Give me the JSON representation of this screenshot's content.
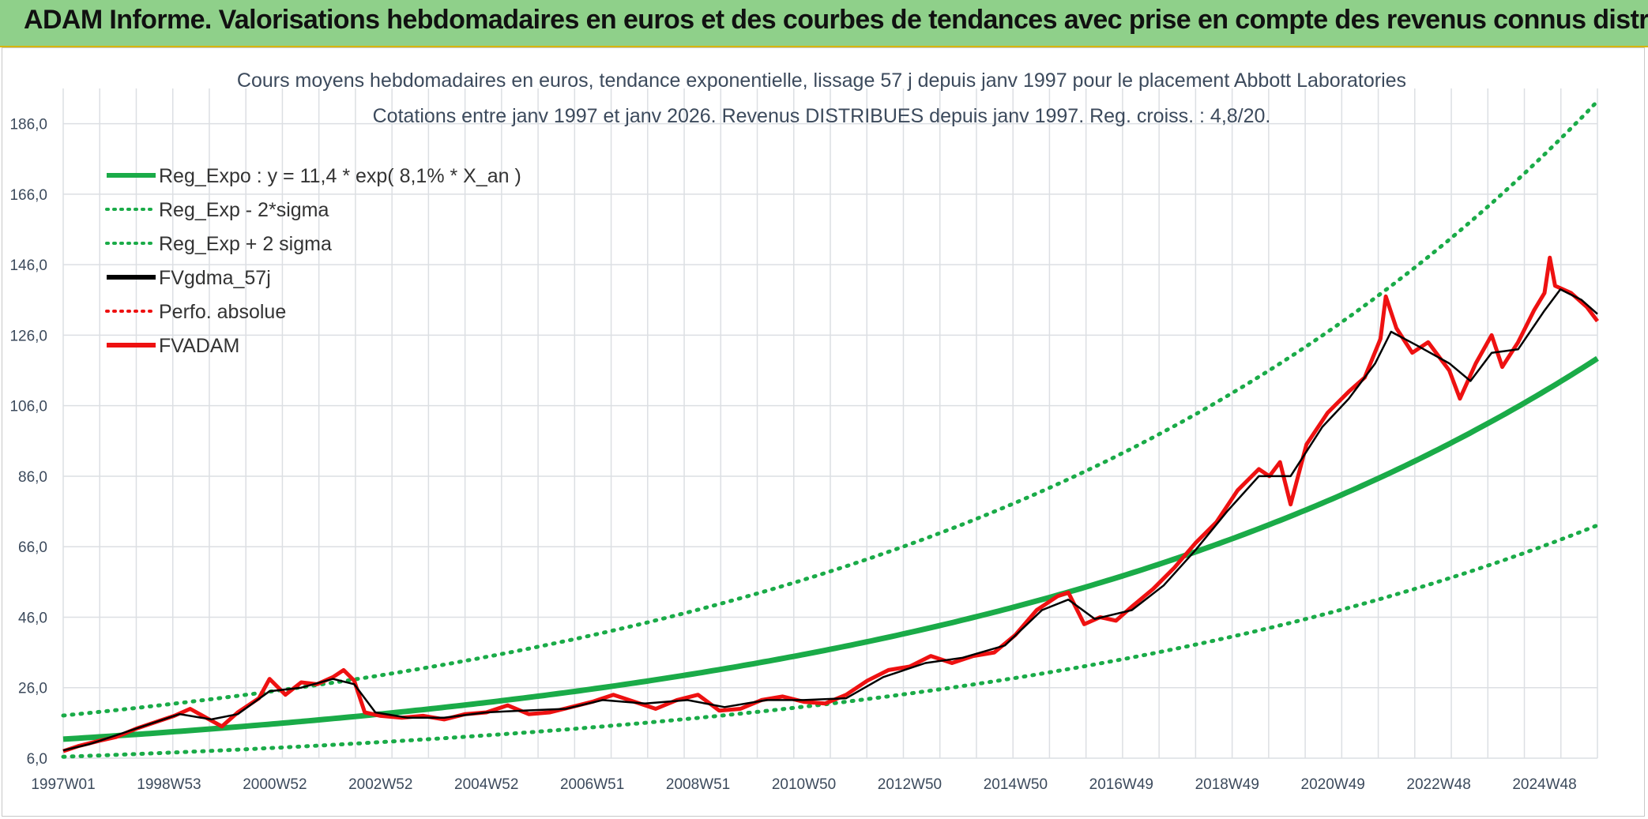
{
  "banner": {
    "title": "ADAM Informe. Valorisations hebdomadaires en euros et des courbes de tendances avec prise en compte des revenus connus distribués"
  },
  "colors": {
    "green": "#1aab48",
    "red": "#ee1111",
    "black": "#000000",
    "banner_bg": "#8fd08a",
    "grid": "#dcdfe3"
  },
  "chart_data": {
    "type": "line",
    "title": "Cours moyens hebdomadaires en euros, tendance exponentielle, lissage 57 j depuis janv 1997 pour le placement Abbott Laboratories",
    "subtitle": "Cotations entre janv 1997 et janv 2026. Revenus DISTRIBUES depuis janv 1997. Reg. croiss. : 4,8/20.",
    "xlabel": "",
    "ylabel": "",
    "x_range_years": [
      1997.0,
      2026.0
    ],
    "ylim": [
      6.0,
      196.0
    ],
    "y_ticks": [
      "186,0",
      "166,0",
      "146,0",
      "126,0",
      "106,0",
      "86,0",
      "66,0",
      "46,0",
      "26,0",
      "6,0"
    ],
    "y_tick_values": [
      186,
      166,
      146,
      126,
      106,
      86,
      66,
      46,
      26,
      6
    ],
    "x_tick_labels": [
      "1997W01",
      "1998W53",
      "2000W52",
      "2002W52",
      "2004W52",
      "2006W51",
      "2008W51",
      "2010W50",
      "2012W50",
      "2014W50",
      "2016W49",
      "2018W49",
      "2020W49",
      "2022W48",
      "2024W48"
    ],
    "legend": [
      {
        "label": "Reg_Expo : y = 11,4 * exp( 8,1% *  X_an )",
        "style": "solid",
        "color": "#1aab48"
      },
      {
        "label": "Reg_Exp - 2*sigma",
        "style": "dotted",
        "color": "#1aab48"
      },
      {
        "label": "Reg_Exp + 2 sigma",
        "style": "dotted",
        "color": "#1aab48"
      },
      {
        "label": "FVgdma_57j",
        "style": "solid",
        "color": "#000000"
      },
      {
        "label": "Perfo. absolue",
        "style": "dotted",
        "color": "#ee1111"
      },
      {
        "label": "FVADAM",
        "style": "solid",
        "color": "#ee1111"
      }
    ],
    "legend_position": "top-left",
    "grid": true,
    "series": [
      {
        "name": "Reg_Expo",
        "kind": "exp",
        "a": 11.4,
        "b": 0.081
      },
      {
        "name": "Reg_Exp - 2*sigma",
        "kind": "exp",
        "a": 6.4,
        "b": 0.0835
      },
      {
        "name": "Reg_Exp + 2 sigma",
        "kind": "exp",
        "a": 18.1,
        "b": 0.0815
      },
      {
        "name": "FVADAM",
        "points": [
          [
            1997.0,
            8.0
          ],
          [
            1997.3,
            9.5
          ],
          [
            1997.7,
            11.0
          ],
          [
            1998.0,
            12.0
          ],
          [
            1998.4,
            14.5
          ],
          [
            1998.8,
            16.5
          ],
          [
            1999.1,
            18.0
          ],
          [
            1999.4,
            20.0
          ],
          [
            1999.7,
            17.5
          ],
          [
            2000.0,
            15.0
          ],
          [
            2000.3,
            19.0
          ],
          [
            2000.7,
            23.0
          ],
          [
            2000.9,
            28.5
          ],
          [
            2001.2,
            24.0
          ],
          [
            2001.5,
            27.5
          ],
          [
            2001.8,
            27.0
          ],
          [
            2002.1,
            29.0
          ],
          [
            2002.3,
            31.0
          ],
          [
            2002.5,
            28.0
          ],
          [
            2002.7,
            19.0
          ],
          [
            2003.0,
            18.0
          ],
          [
            2003.4,
            17.5
          ],
          [
            2003.8,
            18.0
          ],
          [
            2004.2,
            17.0
          ],
          [
            2004.6,
            18.5
          ],
          [
            2005.0,
            19.0
          ],
          [
            2005.4,
            21.0
          ],
          [
            2005.8,
            18.5
          ],
          [
            2006.2,
            19.0
          ],
          [
            2006.6,
            20.5
          ],
          [
            2007.0,
            22.0
          ],
          [
            2007.4,
            24.0
          ],
          [
            2007.8,
            22.0
          ],
          [
            2008.2,
            20.0
          ],
          [
            2008.6,
            22.5
          ],
          [
            2009.0,
            24.0
          ],
          [
            2009.4,
            19.5
          ],
          [
            2009.8,
            20.0
          ],
          [
            2010.2,
            22.5
          ],
          [
            2010.6,
            23.5
          ],
          [
            2011.0,
            22.0
          ],
          [
            2011.4,
            21.5
          ],
          [
            2011.8,
            24.0
          ],
          [
            2012.2,
            28.0
          ],
          [
            2012.6,
            31.0
          ],
          [
            2013.0,
            32.0
          ],
          [
            2013.4,
            35.0
          ],
          [
            2013.8,
            33.0
          ],
          [
            2014.2,
            35.0
          ],
          [
            2014.6,
            36.0
          ],
          [
            2015.0,
            41.0
          ],
          [
            2015.4,
            48.0
          ],
          [
            2015.8,
            52.0
          ],
          [
            2016.0,
            53.0
          ],
          [
            2016.3,
            44.0
          ],
          [
            2016.6,
            46.0
          ],
          [
            2016.9,
            45.0
          ],
          [
            2017.2,
            49.0
          ],
          [
            2017.6,
            54.0
          ],
          [
            2018.0,
            60.0
          ],
          [
            2018.4,
            67.0
          ],
          [
            2018.8,
            73.0
          ],
          [
            2019.2,
            82.0
          ],
          [
            2019.6,
            88.0
          ],
          [
            2019.8,
            86.0
          ],
          [
            2020.0,
            90.0
          ],
          [
            2020.2,
            78.0
          ],
          [
            2020.5,
            95.0
          ],
          [
            2020.9,
            104.0
          ],
          [
            2021.3,
            110.0
          ],
          [
            2021.6,
            114.0
          ],
          [
            2021.9,
            125.0
          ],
          [
            2022.0,
            137.0
          ],
          [
            2022.2,
            128.0
          ],
          [
            2022.5,
            121.0
          ],
          [
            2022.8,
            124.0
          ],
          [
            2023.2,
            116.0
          ],
          [
            2023.4,
            108.0
          ],
          [
            2023.7,
            118.0
          ],
          [
            2024.0,
            126.0
          ],
          [
            2024.2,
            117.0
          ],
          [
            2024.5,
            124.0
          ],
          [
            2024.8,
            133.0
          ],
          [
            2025.0,
            138.0
          ],
          [
            2025.1,
            148.0
          ],
          [
            2025.2,
            140.0
          ],
          [
            2025.5,
            138.0
          ],
          [
            2025.8,
            134.0
          ],
          [
            2026.0,
            130.0
          ]
        ]
      },
      {
        "name": "FVgdma_57j",
        "points": [
          [
            1997.0,
            8.2
          ],
          [
            1997.5,
            10.0
          ],
          [
            1998.0,
            12.5
          ],
          [
            1998.6,
            15.5
          ],
          [
            1999.2,
            18.5
          ],
          [
            1999.8,
            17.0
          ],
          [
            2000.3,
            18.5
          ],
          [
            2000.9,
            25.0
          ],
          [
            2001.5,
            26.0
          ],
          [
            2002.1,
            28.5
          ],
          [
            2002.5,
            27.0
          ],
          [
            2002.9,
            19.0
          ],
          [
            2003.5,
            17.5
          ],
          [
            2004.2,
            17.5
          ],
          [
            2005.0,
            19.0
          ],
          [
            2005.7,
            19.5
          ],
          [
            2006.5,
            20.0
          ],
          [
            2007.2,
            22.5
          ],
          [
            2008.0,
            21.5
          ],
          [
            2008.8,
            22.5
          ],
          [
            2009.5,
            20.5
          ],
          [
            2010.3,
            22.5
          ],
          [
            2011.0,
            22.5
          ],
          [
            2011.8,
            23.0
          ],
          [
            2012.5,
            29.0
          ],
          [
            2013.3,
            33.0
          ],
          [
            2014.0,
            34.5
          ],
          [
            2014.8,
            38.0
          ],
          [
            2015.5,
            48.0
          ],
          [
            2016.0,
            51.0
          ],
          [
            2016.5,
            45.5
          ],
          [
            2017.2,
            48.0
          ],
          [
            2017.8,
            55.0
          ],
          [
            2018.4,
            65.0
          ],
          [
            2019.0,
            76.0
          ],
          [
            2019.6,
            86.0
          ],
          [
            2020.2,
            86.0
          ],
          [
            2020.8,
            100.0
          ],
          [
            2021.3,
            108.0
          ],
          [
            2021.8,
            118.0
          ],
          [
            2022.1,
            127.0
          ],
          [
            2022.6,
            123.0
          ],
          [
            2023.2,
            118.0
          ],
          [
            2023.6,
            113.0
          ],
          [
            2024.0,
            121.0
          ],
          [
            2024.5,
            122.0
          ],
          [
            2025.0,
            133.0
          ],
          [
            2025.3,
            139.0
          ],
          [
            2025.7,
            136.0
          ],
          [
            2026.0,
            132.0
          ]
        ]
      }
    ]
  }
}
